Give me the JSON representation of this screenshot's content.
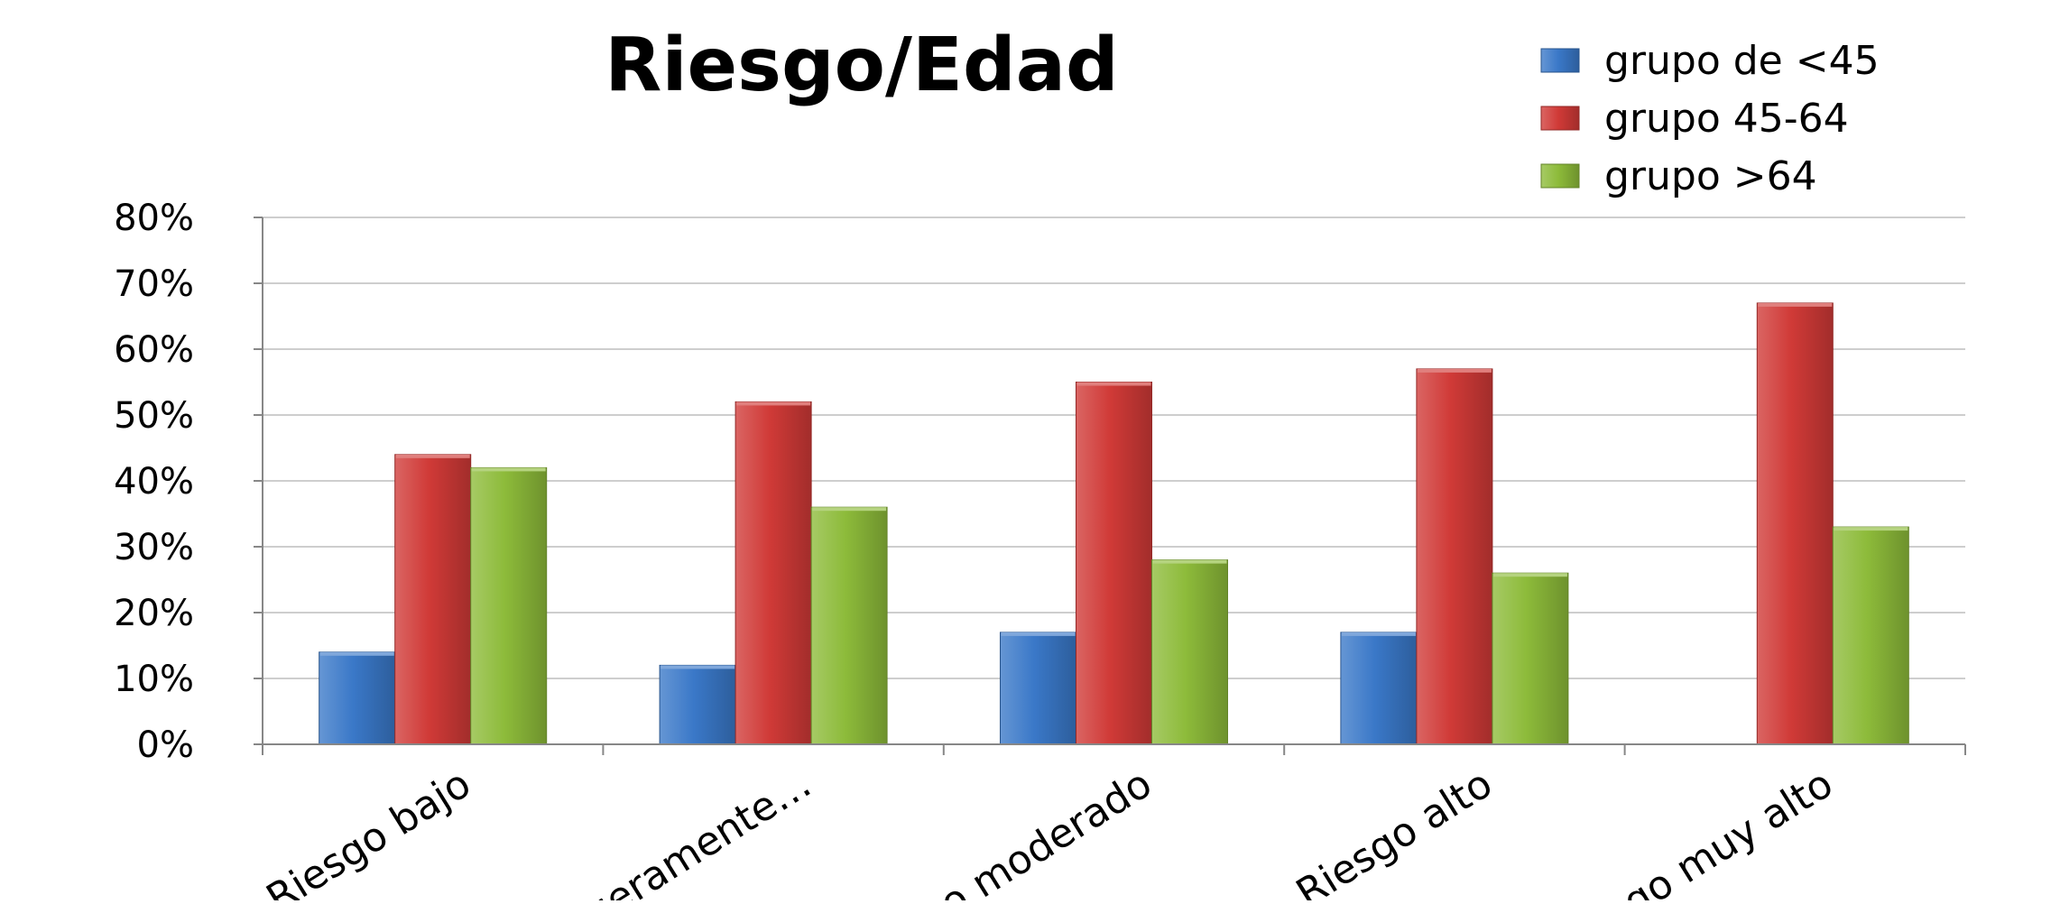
{
  "chart_data": {
    "type": "bar",
    "title": "Riesgo/Edad",
    "xlabel": "",
    "ylabel": "",
    "categories": [
      "Riesgo  bajo",
      "ligeramente…",
      "o moderado",
      "Riesgo alto",
      "sgo muy alto"
    ],
    "series": [
      {
        "name": "grupo de <45",
        "color": "#3A78C8",
        "values": [
          14,
          12,
          17,
          17,
          null
        ]
      },
      {
        "name": "grupo 45-64",
        "color": "#D03A37",
        "values": [
          44,
          52,
          55,
          57,
          67
        ]
      },
      {
        "name": "grupo >64",
        "color": "#8DBB3A",
        "values": [
          42,
          36,
          28,
          26,
          33
        ]
      }
    ],
    "ylim": [
      0,
      80
    ],
    "yticks": [
      0,
      10,
      20,
      30,
      40,
      50,
      60,
      70,
      80
    ],
    "ytick_labels": [
      "0%",
      "10%",
      "20%",
      "30%",
      "40%",
      "50%",
      "60%",
      "70%",
      "80%"
    ],
    "grid": true,
    "legend_position": "top-right",
    "colors": {
      "axis": "#878787",
      "grid": "#bdbdbd",
      "text": "#000000"
    }
  }
}
